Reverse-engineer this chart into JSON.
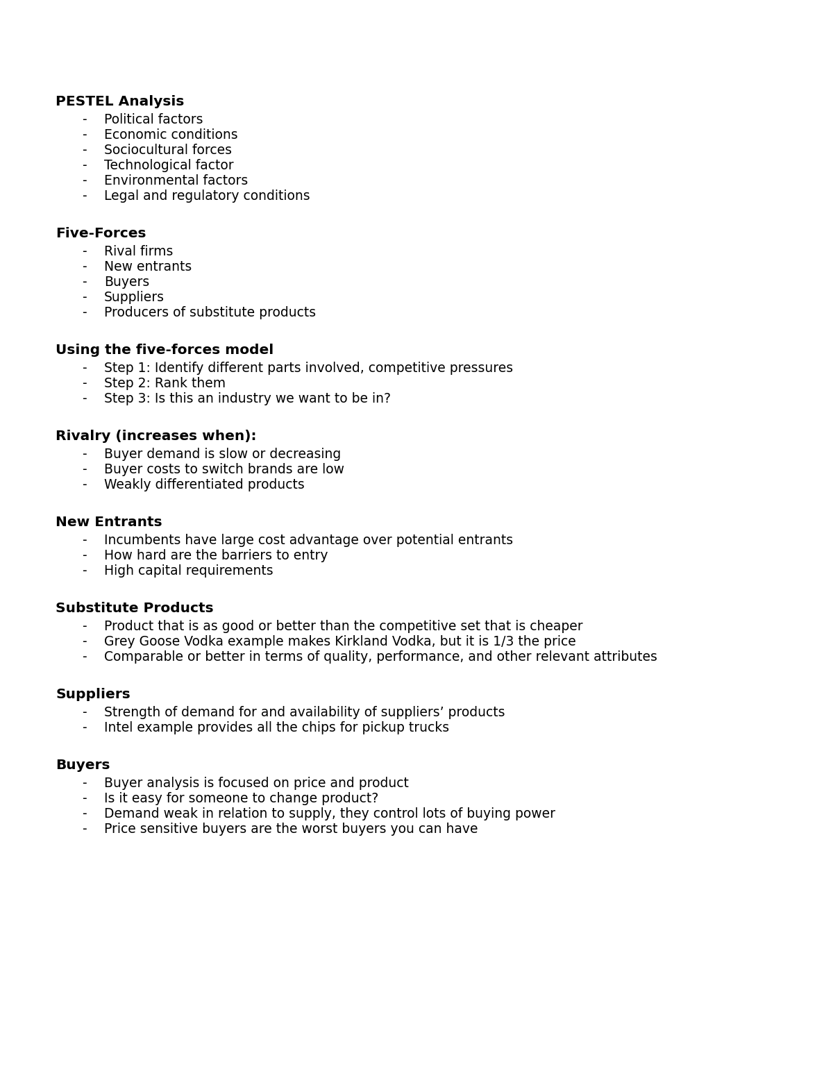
{
  "background_color": "#ffffff",
  "text_color": "#000000",
  "font_size_heading": 14.5,
  "font_size_bullet": 13.5,
  "sections": [
    {
      "heading": "PESTEL Analysis",
      "bullets": [
        "Political factors",
        "Economic conditions",
        "Sociocultural forces",
        "Technological factor",
        "Environmental factors",
        "Legal and regulatory conditions"
      ]
    },
    {
      "heading": "Five-Forces",
      "bullets": [
        "Rival firms",
        "New entrants",
        "Buyers",
        "Suppliers",
        "Producers of substitute products"
      ]
    },
    {
      "heading": "Using the five-forces model",
      "bullets": [
        "Step 1: Identify different parts involved, competitive pressures",
        "Step 2: Rank them",
        "Step 3: Is this an industry we want to be in?"
      ]
    },
    {
      "heading": "Rivalry (increases when):",
      "bullets": [
        "Buyer demand is slow or decreasing",
        "Buyer costs to switch brands are low",
        "Weakly differentiated products"
      ]
    },
    {
      "heading": "New Entrants",
      "bullets": [
        "Incumbents have large cost advantage over potential entrants",
        "How hard are the barriers to entry",
        "High capital requirements"
      ]
    },
    {
      "heading": "Substitute Products",
      "bullets": [
        "Product that is as good or better than the competitive set that is cheaper",
        "Grey Goose Vodka example makes Kirkland Vodka, but it is 1/3 the price",
        "Comparable or better in terms of quality, performance, and other relevant attributes"
      ]
    },
    {
      "heading": "Suppliers",
      "bullets": [
        "Strength of demand for and availability of suppliers’ products",
        "Intel example provides all the chips for pickup trucks"
      ]
    },
    {
      "heading": "Buyers",
      "bullets": [
        "Buyer analysis is focused on price and product",
        "Is it easy for someone to change product?",
        "Demand weak in relation to supply, they control lots of buying power",
        "Price sensitive buyers are the worst buyers you can have"
      ]
    }
  ]
}
